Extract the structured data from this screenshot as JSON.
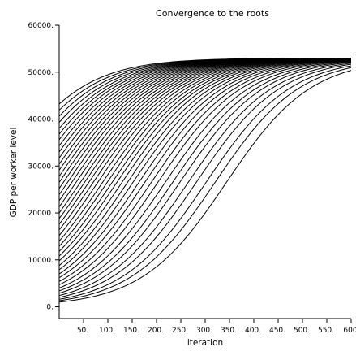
{
  "chart_data": {
    "type": "line",
    "title": "Convergence to the roots",
    "xlabel": "iteration",
    "ylabel": "GDP per worker level",
    "xlim": [
      0,
      600
    ],
    "ylim": [
      -2500,
      60000
    ],
    "x_ticks": [
      50,
      100,
      150,
      200,
      250,
      300,
      350,
      400,
      450,
      500,
      550,
      600
    ],
    "x_tick_labels": [
      "50.",
      "100.",
      "150.",
      "200.",
      "250.",
      "300.",
      "350.",
      "400.",
      "450.",
      "500.",
      "550.",
      "600"
    ],
    "y_ticks": [
      0,
      10000,
      20000,
      30000,
      40000,
      50000,
      60000
    ],
    "y_tick_labels": [
      "0.",
      "10000.",
      "20000.",
      "30000.",
      "40000.",
      "50000.",
      "60000."
    ],
    "grid": false,
    "legend": "none",
    "line_color": "#000000",
    "curve_model": "logistic y = K / (1 + (K - y0)/y0 * exp(-r*x)), K ≈ 53000, r ≈ 0.0115",
    "series": [
      {
        "y0": 1000
      },
      {
        "y0": 1300
      },
      {
        "y0": 1600
      },
      {
        "y0": 2000
      },
      {
        "y0": 2400
      },
      {
        "y0": 2900
      },
      {
        "y0": 3400
      },
      {
        "y0": 4000
      },
      {
        "y0": 4700
      },
      {
        "y0": 5400
      },
      {
        "y0": 6200
      },
      {
        "y0": 7000
      },
      {
        "y0": 7900
      },
      {
        "y0": 8800
      },
      {
        "y0": 9800
      },
      {
        "y0": 10800
      },
      {
        "y0": 11800
      },
      {
        "y0": 12900
      },
      {
        "y0": 14000
      },
      {
        "y0": 15200
      },
      {
        "y0": 16400
      },
      {
        "y0": 17600
      },
      {
        "y0": 18800
      },
      {
        "y0": 20000
      },
      {
        "y0": 21300
      },
      {
        "y0": 22600
      },
      {
        "y0": 23900
      },
      {
        "y0": 25200
      },
      {
        "y0": 26500
      },
      {
        "y0": 27800
      },
      {
        "y0": 29100
      },
      {
        "y0": 30400
      },
      {
        "y0": 31700
      },
      {
        "y0": 33000
      },
      {
        "y0": 34300
      },
      {
        "y0": 35600
      },
      {
        "y0": 36800
      },
      {
        "y0": 38000
      },
      {
        "y0": 39300
      },
      {
        "y0": 40600
      },
      {
        "y0": 41900
      },
      {
        "y0": 43200
      }
    ]
  }
}
